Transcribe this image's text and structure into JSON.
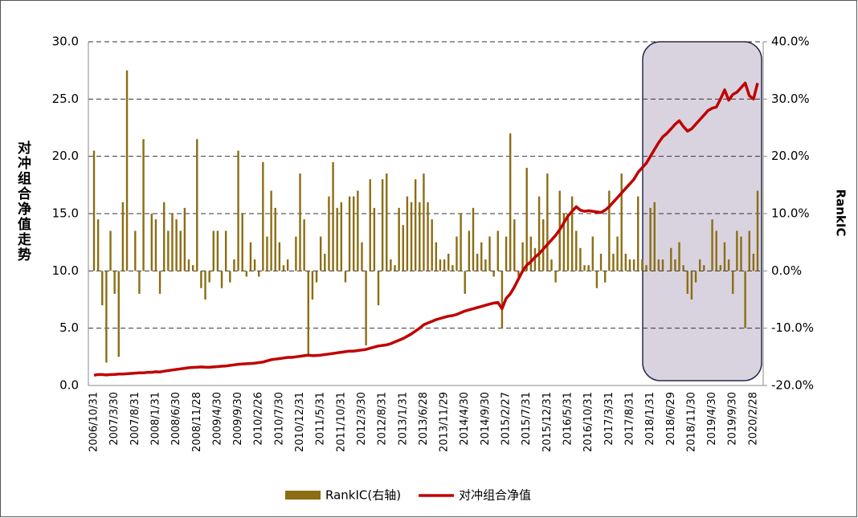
{
  "chart_data": {
    "type": "combo",
    "ylabel": "对冲组合净值走势",
    "y2label": "RankIC",
    "ylim": [
      0,
      30
    ],
    "yticks": [
      {
        "value": 0,
        "label": "0.0"
      },
      {
        "value": 5,
        "label": "5.0"
      },
      {
        "value": 10,
        "label": "10.0"
      },
      {
        "value": 15,
        "label": "15.0"
      },
      {
        "value": 20,
        "label": "20.0"
      },
      {
        "value": 25,
        "label": "25.0"
      },
      {
        "value": 30,
        "label": "30.0"
      }
    ],
    "y2lim": [
      -20,
      40
    ],
    "y2ticks": [
      {
        "value": -20,
        "label": "-20.0%"
      },
      {
        "value": -10,
        "label": "-10.0%"
      },
      {
        "value": 0,
        "label": "0.0%"
      },
      {
        "value": 10,
        "label": "10.0%"
      },
      {
        "value": 20,
        "label": "20.0%"
      },
      {
        "value": 30,
        "label": "30.0%"
      },
      {
        "value": 40,
        "label": "40.0%"
      }
    ],
    "grid": true,
    "legend": "bottom",
    "categories": [
      "2006/10/31",
      null,
      null,
      null,
      null,
      "2007/3/30",
      null,
      null,
      null,
      null,
      "2007/8/31",
      null,
      null,
      null,
      null,
      "2008/1/31",
      null,
      null,
      null,
      null,
      "2008/6/30",
      null,
      null,
      null,
      null,
      "2008/11/28",
      null,
      null,
      null,
      null,
      "2009/4/30",
      null,
      null,
      null,
      null,
      "2009/9/30",
      null,
      null,
      null,
      null,
      "2010/2/26",
      null,
      null,
      null,
      null,
      "2010/7/30",
      null,
      null,
      null,
      null,
      "2010/12/31",
      null,
      null,
      null,
      null,
      "2011/5/31",
      null,
      null,
      null,
      null,
      "2011/10/31",
      null,
      null,
      null,
      null,
      "2012/3/30",
      null,
      null,
      null,
      null,
      "2012/8/31",
      null,
      null,
      null,
      null,
      "2013/1/31",
      null,
      null,
      null,
      null,
      "2013/6/28",
      null,
      null,
      null,
      null,
      "2013/11/29",
      null,
      null,
      null,
      null,
      "2014/4/30",
      null,
      null,
      null,
      null,
      "2014/9/30",
      null,
      null,
      null,
      null,
      "2015/2/27",
      null,
      null,
      null,
      null,
      "2015/7/31",
      null,
      null,
      null,
      null,
      "2015/12/31",
      null,
      null,
      null,
      null,
      "2016/5/31",
      null,
      null,
      null,
      null,
      "2016/10/31",
      null,
      null,
      null,
      null,
      "2017/3/31",
      null,
      null,
      null,
      null,
      "2017/8/31",
      null,
      null,
      null,
      null,
      "2018/1/31",
      null,
      null,
      null,
      null,
      "2018/6/29",
      null,
      null,
      null,
      null,
      "2018/11/30",
      null,
      null,
      null,
      null,
      "2019/4/30",
      null,
      null,
      null,
      null,
      "2019/9/30",
      null,
      null,
      null,
      null,
      "2020/2/28",
      null
    ],
    "series": [
      {
        "name": "RankIC(右轴)",
        "type": "bar",
        "axis": "y2",
        "color": "#8c6d14",
        "values": [
          21,
          9,
          -6,
          -16,
          7,
          -4,
          -15,
          12,
          35,
          0,
          7,
          -4,
          23,
          0,
          10,
          9,
          -4,
          12,
          7,
          10,
          9,
          7,
          11,
          2,
          1,
          23,
          -3,
          -5,
          -2,
          7,
          7,
          -3,
          7,
          -2,
          2,
          21,
          10,
          -1,
          5,
          2,
          -1,
          19,
          6,
          14,
          11,
          5,
          1,
          2,
          0,
          6,
          17,
          9,
          -15,
          -5,
          -2,
          6,
          3,
          13,
          19,
          11,
          12,
          -2,
          13,
          13,
          14,
          5,
          -13,
          16,
          11,
          -6,
          16,
          17,
          2,
          1,
          11,
          8,
          13,
          12,
          16,
          12,
          17,
          12,
          9,
          5,
          2,
          2,
          3,
          1,
          6,
          10,
          -4,
          7,
          11,
          3,
          5,
          2,
          6,
          -1,
          7,
          -10,
          6,
          24,
          9,
          -1,
          5,
          18,
          6,
          4,
          13,
          9,
          17,
          2,
          -2,
          14,
          10,
          10,
          13,
          7,
          4,
          1,
          1,
          6,
          -3,
          3,
          -2,
          14,
          3,
          6,
          17,
          3,
          2,
          2,
          13,
          2,
          1,
          11,
          12,
          2,
          2,
          0,
          4,
          2,
          5,
          1,
          -4,
          -5,
          -2,
          2,
          1,
          0,
          9,
          7,
          1,
          5,
          2,
          -4,
          7,
          6,
          -10,
          7,
          3,
          14
        ]
      },
      {
        "name": "对冲组合净值",
        "type": "line",
        "color": "#c00000",
        "values": [
          0.9,
          0.95,
          0.95,
          0.92,
          0.95,
          0.97,
          1.0,
          1.0,
          1.02,
          1.05,
          1.08,
          1.1,
          1.1,
          1.15,
          1.15,
          1.2,
          1.18,
          1.25,
          1.3,
          1.35,
          1.4,
          1.45,
          1.5,
          1.55,
          1.58,
          1.6,
          1.62,
          1.6,
          1.6,
          1.62,
          1.65,
          1.68,
          1.7,
          1.75,
          1.8,
          1.85,
          1.88,
          1.9,
          1.92,
          1.95,
          2.0,
          2.05,
          2.15,
          2.25,
          2.3,
          2.35,
          2.4,
          2.45,
          2.45,
          2.5,
          2.55,
          2.6,
          2.65,
          2.6,
          2.62,
          2.65,
          2.7,
          2.75,
          2.8,
          2.85,
          2.9,
          2.95,
          3.0,
          3.0,
          3.05,
          3.1,
          3.15,
          3.25,
          3.35,
          3.45,
          3.5,
          3.55,
          3.65,
          3.8,
          3.95,
          4.1,
          4.3,
          4.5,
          4.75,
          5.0,
          5.3,
          5.45,
          5.6,
          5.75,
          5.85,
          5.95,
          6.05,
          6.1,
          6.2,
          6.35,
          6.5,
          6.6,
          6.7,
          6.8,
          6.9,
          7.0,
          7.1,
          7.2,
          7.25,
          6.7,
          7.6,
          8.0,
          8.6,
          9.3,
          10.0,
          10.5,
          10.8,
          11.2,
          11.5,
          11.9,
          12.3,
          12.7,
          13.1,
          13.6,
          14.2,
          14.8,
          15.2,
          15.6,
          15.3,
          15.2,
          15.25,
          15.2,
          15.15,
          15.1,
          15.3,
          15.6,
          16.0,
          16.4,
          16.8,
          17.2,
          17.6,
          18.0,
          18.6,
          19.0,
          19.4,
          20.0,
          20.6,
          21.2,
          21.7,
          22.0,
          22.4,
          22.8,
          23.1,
          22.6,
          22.2,
          22.4,
          22.8,
          23.2,
          23.6,
          24.0,
          24.2,
          24.3,
          25.0,
          25.8,
          24.9,
          25.4,
          25.6,
          26.0,
          26.4,
          25.3,
          25.0,
          26.4
        ]
      }
    ]
  }
}
